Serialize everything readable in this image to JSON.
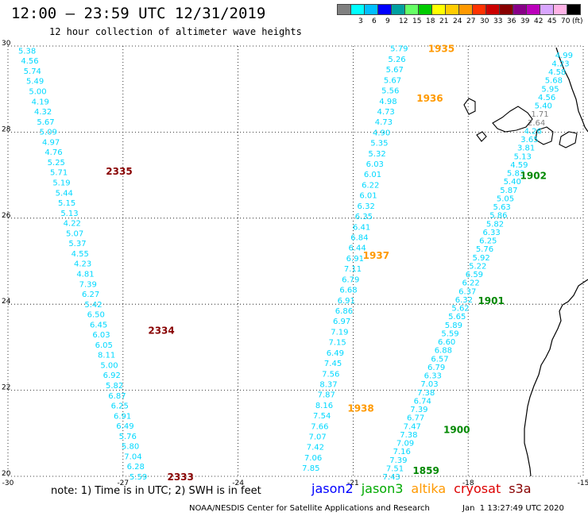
{
  "header": {
    "title": "12:00 – 23:59 UTC 12/31/2019",
    "subtitle": "12 hour collection of altimeter wave heights"
  },
  "colorbar": {
    "unit": "(ft)",
    "bins": [
      {
        "label": "",
        "color": "#808080"
      },
      {
        "label": "3",
        "color": "#00ffff"
      },
      {
        "label": "6",
        "color": "#00bfff"
      },
      {
        "label": "9",
        "color": "#0000ff"
      },
      {
        "label": "12",
        "color": "#00a0a0"
      },
      {
        "label": "15",
        "color": "#66ff66"
      },
      {
        "label": "18",
        "color": "#00cc00"
      },
      {
        "label": "21",
        "color": "#ffff00"
      },
      {
        "label": "24",
        "color": "#ffcc00"
      },
      {
        "label": "27",
        "color": "#ff9900"
      },
      {
        "label": "30",
        "color": "#ff3300"
      },
      {
        "label": "33",
        "color": "#cc0000"
      },
      {
        "label": "36",
        "color": "#880000"
      },
      {
        "label": "39",
        "color": "#880088"
      },
      {
        "label": "42",
        "color": "#bb00bb"
      },
      {
        "label": "45",
        "color": "#d9a6ff"
      },
      {
        "label": "70",
        "color": "#ffb3e6"
      },
      {
        "label": "",
        "color": "#000000"
      }
    ]
  },
  "axes": {
    "x_ticks": [
      "-30",
      "-27",
      "-24",
      "-21",
      "-18",
      "-15"
    ],
    "y_ticks": [
      "30",
      "28",
      "26",
      "24",
      "22",
      "20"
    ],
    "xlim": [
      -30,
      -15
    ],
    "ylim": [
      20,
      30
    ]
  },
  "chart_data": {
    "type": "scatter",
    "unit": "ft",
    "tracks": [
      {
        "satellite": "cryosat",
        "lon_start": -29.5,
        "lat_start": 29.9,
        "lon_end": -26.6,
        "lat_end": 20.0,
        "values": [
          "5.38",
          "4.56",
          "5.74",
          "5.49",
          "5.00",
          "4.19",
          "4.32",
          "5.67",
          "5.09",
          "4.97",
          "4.76",
          "5.25",
          "5.71",
          "5.19",
          "5.44",
          "5.15",
          "5.13",
          "4.22",
          "5.07",
          "5.37",
          "4.55",
          "4.23",
          "4.81",
          "7.39",
          "6.27",
          "5.42",
          "6.50",
          "6.45",
          "6.03",
          "6.05",
          "8.11",
          "5.00",
          "6.92",
          "5.82",
          "6.87",
          "6.25",
          "6.91",
          "6.49",
          "5.76",
          "5.80",
          "7.04",
          "6.28",
          "5.59"
        ],
        "time_labels": [
          {
            "text": "2335",
            "lon": -27.1,
            "lat": 27.1
          },
          {
            "text": "2334",
            "lon": -26.0,
            "lat": 23.4
          },
          {
            "text": "2333",
            "lon": -25.5,
            "lat": 20.0
          }
        ]
      },
      {
        "satellite": "altika",
        "lon_start": -19.8,
        "lat_start": 29.95,
        "lon_end": -22.1,
        "lat_end": 20.2,
        "values": [
          "5.79",
          "5.26",
          "5.67",
          "5.67",
          "5.56",
          "4.98",
          "4.73",
          "4.73",
          "4.90",
          "5.35",
          "5.32",
          "6.03",
          "6.01",
          "6.22",
          "6.01",
          "6.32",
          "6.35",
          "6.41",
          "6.84",
          "6.44",
          "6.91",
          "7.11",
          "6.79",
          "6.68",
          "6.91",
          "6.86",
          "6.97",
          "7.19",
          "7.15",
          "6.49",
          "7.45",
          "7.56",
          "8.37",
          "7.87",
          "8.16",
          "7.54",
          "7.66",
          "7.07",
          "7.42",
          "7.06",
          "7.85"
        ],
        "time_labels": [
          {
            "text": "1935",
            "lon": -18.7,
            "lat": 29.95
          },
          {
            "text": "1936",
            "lon": -19.0,
            "lat": 28.8
          },
          {
            "text": "1937",
            "lon": -20.4,
            "lat": 25.15
          },
          {
            "text": "1938",
            "lon": -20.8,
            "lat": 21.6
          }
        ]
      },
      {
        "satellite": "jason3",
        "lon_start": -15.5,
        "lat_start": 29.8,
        "lon_end": -20.0,
        "lat_end": 20.0,
        "values": [
          "4.99",
          "4.23",
          "4.58",
          "5.68",
          "5.95",
          "4.56",
          "5.40",
          "1.71",
          "2.64",
          "4.26",
          "3.65",
          "3.81",
          "5.13",
          "4.59",
          "5.83",
          "5.40",
          "5.87",
          "5.05",
          "5.63",
          "5.86",
          "5.82",
          "6.33",
          "6.25",
          "5.76",
          "5.92",
          "5.22",
          "6.59",
          "6.22",
          "6.37",
          "6.32",
          "5.62",
          "5.65",
          "5.89",
          "5.59",
          "6.60",
          "6.88",
          "6.57",
          "6.79",
          "6.33",
          "7.03",
          "7.38",
          "6.74",
          "7.39",
          "6.77",
          "7.47",
          "7.38",
          "7.09",
          "7.16",
          "7.39",
          "7.51",
          "7.43"
        ],
        "time_labels": [
          {
            "text": "1902",
            "lon": -16.3,
            "lat": 27.0
          },
          {
            "text": "1901",
            "lon": -17.4,
            "lat": 24.1
          },
          {
            "text": "1900",
            "lon": -18.3,
            "lat": 21.1
          },
          {
            "text": "1859",
            "lon": -19.1,
            "lat": 20.15
          }
        ]
      }
    ]
  },
  "note": "note: 1) Time is in UTC; 2) SWH is in feet",
  "legend": [
    {
      "name": "jason2",
      "color": "#0000ff"
    },
    {
      "name": "jason3",
      "color": "#00aa00"
    },
    {
      "name": "altika",
      "color": "#ff9900"
    },
    {
      "name": "cryosat",
      "color": "#dd0000"
    },
    {
      "name": "s3a",
      "color": "#880000"
    }
  ],
  "footer": {
    "credit": "NOAA/NESDIS Center for Satellite Applications and Research",
    "timestamp": "Jan  1 13:27:49 UTC 2020"
  },
  "style": {
    "value_color": "#00d8ff",
    "gray_color": "#808080",
    "cryosat_label_color": "#880000",
    "altika_label_color": "#ff9900",
    "jason3_label_color": "#008800"
  }
}
